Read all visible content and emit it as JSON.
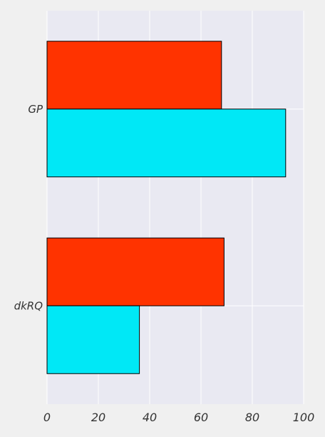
{
  "chart_data": {
    "type": "bar",
    "orientation": "horizontal",
    "title": "",
    "xlabel": "",
    "ylabel": "",
    "categories": [
      "GP",
      "dkRQ"
    ],
    "series": [
      {
        "values": [
          68,
          69
        ]
      },
      {
        "values": [
          93,
          36
        ]
      }
    ],
    "xlim": [
      0,
      100
    ],
    "xticks": [
      0,
      20,
      40,
      60,
      80,
      100
    ],
    "grid": true,
    "legend": "none"
  },
  "colors": {
    "background": "#f0f0f0",
    "plot_background": "#e9e9f2",
    "grid": "#ffffff",
    "series": [
      "#ff3300",
      "#00e8f6"
    ],
    "edge": "#000000"
  }
}
